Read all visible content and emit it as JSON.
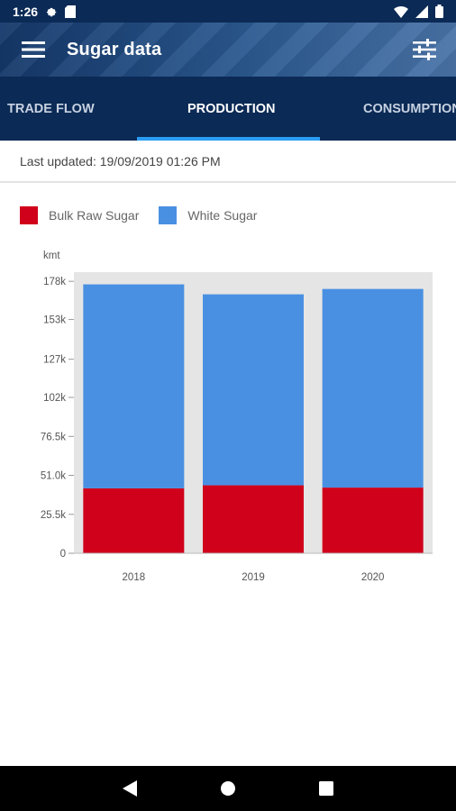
{
  "status_bar": {
    "time": "1:26",
    "icons": [
      "gear-icon",
      "sd-card-icon",
      "wifi-icon",
      "signal-icon",
      "battery-icon"
    ]
  },
  "app_bar": {
    "title": "Sugar data",
    "menu_icon": "hamburger-menu-icon",
    "filter_icon": "tune-sliders-icon"
  },
  "tabs": [
    {
      "label": "TRADE FLOW",
      "active": false
    },
    {
      "label": "PRODUCTION",
      "active": true
    },
    {
      "label": "CONSUMPTION",
      "active": false
    }
  ],
  "last_updated": "Last updated: 19/09/2019 01:26 PM",
  "colors": {
    "bulk_raw": "#d0021b",
    "white": "#4a90e2",
    "accent": "#2a9df4",
    "dark_blue": "#0b2a55"
  },
  "chart_data": {
    "type": "bar",
    "stacked": true,
    "unit_label": "kmt",
    "categories": [
      "2018",
      "2019",
      "2020"
    ],
    "series": [
      {
        "name": "Bulk Raw Sugar",
        "color": "#d0021b",
        "values": [
          42500,
          44500,
          43000
        ]
      },
      {
        "name": "White Sugar",
        "color": "#4a90e2",
        "values": [
          133500,
          125000,
          130000
        ]
      }
    ],
    "y_ticks": [
      {
        "value": 0,
        "label": "0"
      },
      {
        "value": 25500,
        "label": "25.5k"
      },
      {
        "value": 51000,
        "label": "51.0k"
      },
      {
        "value": 76500,
        "label": "76.5k"
      },
      {
        "value": 102000,
        "label": "102k"
      },
      {
        "value": 127000,
        "label": "127k"
      },
      {
        "value": 153000,
        "label": "153k"
      },
      {
        "value": 178000,
        "label": "178k"
      }
    ],
    "ylim": [
      0,
      184000
    ],
    "legend_position": "top-left",
    "grid": false
  },
  "nav_bar": {
    "buttons": [
      "back-icon",
      "home-icon",
      "recents-icon"
    ]
  }
}
